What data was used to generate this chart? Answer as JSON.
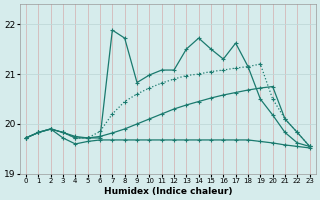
{
  "xlabel": "Humidex (Indice chaleur)",
  "xlim": [
    -0.5,
    23.5
  ],
  "ylim": [
    19.0,
    22.4
  ],
  "yticks": [
    19,
    20,
    21,
    22
  ],
  "xticks": [
    0,
    1,
    2,
    3,
    4,
    5,
    6,
    7,
    8,
    9,
    10,
    11,
    12,
    13,
    14,
    15,
    16,
    17,
    18,
    19,
    20,
    21,
    22,
    23
  ],
  "bg_color": "#d6ecec",
  "line_color": "#1a7a6e",
  "grid_color": "#c0d8d8",
  "line_peaky": {
    "x": [
      0,
      1,
      2,
      3,
      4,
      5,
      6,
      7,
      8,
      9,
      10,
      11,
      12,
      13,
      14,
      15,
      16,
      17,
      18,
      19,
      20,
      21,
      22,
      23
    ],
    "y": [
      19.72,
      19.83,
      19.9,
      19.83,
      19.75,
      19.72,
      19.72,
      21.88,
      21.72,
      20.83,
      20.98,
      21.08,
      21.08,
      21.5,
      21.72,
      21.5,
      21.3,
      21.62,
      21.15,
      20.5,
      20.18,
      19.83,
      19.62,
      19.55
    ]
  },
  "line_dotted": {
    "x": [
      0,
      1,
      2,
      3,
      4,
      5,
      6,
      7,
      8,
      9,
      10,
      11,
      12,
      13,
      14,
      15,
      16,
      17,
      18,
      19,
      20,
      21,
      22,
      23
    ],
    "y": [
      19.72,
      19.83,
      19.9,
      19.83,
      19.72,
      19.72,
      19.85,
      20.2,
      20.45,
      20.6,
      20.72,
      20.82,
      20.9,
      20.97,
      21.0,
      21.05,
      21.08,
      21.12,
      21.15,
      21.2,
      20.5,
      20.1,
      19.83,
      19.55
    ]
  },
  "line_rising": {
    "x": [
      0,
      1,
      2,
      3,
      4,
      5,
      6,
      7,
      8,
      9,
      10,
      11,
      12,
      13,
      14,
      15,
      16,
      17,
      18,
      19,
      20,
      21,
      22,
      23
    ],
    "y": [
      19.72,
      19.83,
      19.9,
      19.83,
      19.72,
      19.72,
      19.75,
      19.82,
      19.9,
      20.0,
      20.1,
      20.2,
      20.3,
      20.38,
      20.45,
      20.52,
      20.58,
      20.63,
      20.68,
      20.72,
      20.75,
      20.1,
      19.83,
      19.55
    ]
  },
  "line_flat": {
    "x": [
      0,
      1,
      2,
      3,
      4,
      5,
      6,
      7,
      8,
      9,
      10,
      11,
      12,
      13,
      14,
      15,
      16,
      17,
      18,
      19,
      20,
      21,
      22,
      23
    ],
    "y": [
      19.72,
      19.83,
      19.9,
      19.72,
      19.6,
      19.65,
      19.68,
      19.68,
      19.68,
      19.68,
      19.68,
      19.68,
      19.68,
      19.68,
      19.68,
      19.68,
      19.68,
      19.68,
      19.68,
      19.65,
      19.62,
      19.58,
      19.55,
      19.52
    ]
  }
}
